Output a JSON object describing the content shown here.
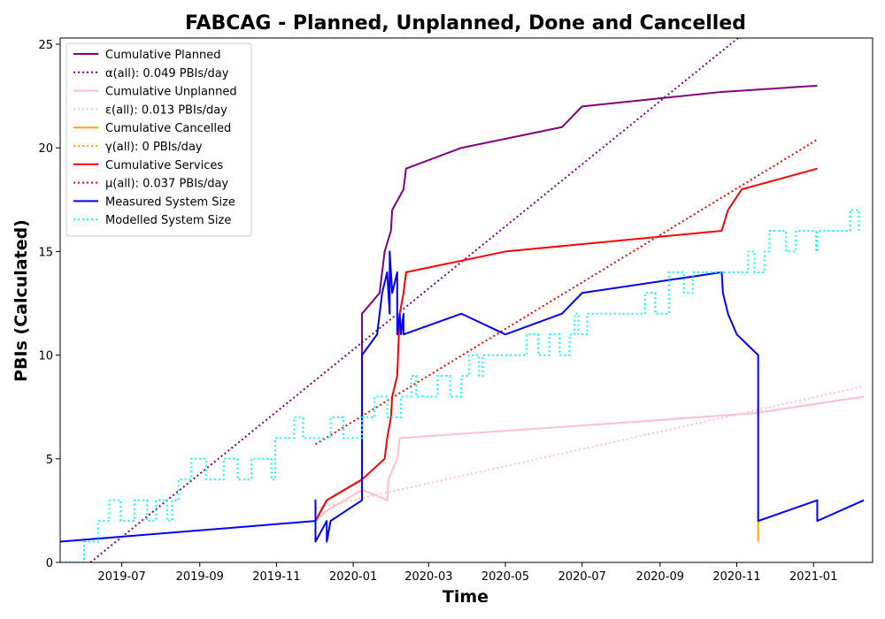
{
  "chart_data": {
    "type": "line",
    "title": "FABCAG - Planned, Unplanned, Done  and Cancelled",
    "xlabel": "Time",
    "ylabel": "PBIs (Calculated)",
    "xlim": [
      "2019-05-13",
      "2021-02-17"
    ],
    "ylim": [
      0,
      25.3
    ],
    "x_ticks": [
      {
        "label": "2019-07",
        "date": "2019-07-01"
      },
      {
        "label": "2019-09",
        "date": "2019-09-01"
      },
      {
        "label": "2019-11",
        "date": "2019-11-01"
      },
      {
        "label": "2020-01",
        "date": "2020-01-01"
      },
      {
        "label": "2020-03",
        "date": "2020-03-01"
      },
      {
        "label": "2020-05",
        "date": "2020-05-01"
      },
      {
        "label": "2020-07",
        "date": "2020-07-01"
      },
      {
        "label": "2020-09",
        "date": "2020-09-01"
      },
      {
        "label": "2020-11",
        "date": "2020-11-01"
      },
      {
        "label": "2021-01",
        "date": "2021-01-01"
      }
    ],
    "y_ticks": [
      0,
      5,
      10,
      15,
      20,
      25
    ],
    "legend_position": "top-left",
    "series": [
      {
        "name": "Cumulative Planned",
        "color": "#800080",
        "style": "solid",
        "points": [
          [
            "2019-12-02",
            2
          ],
          [
            "2019-12-11",
            3
          ],
          [
            "2020-01-08",
            4
          ],
          [
            "2020-01-08",
            12
          ],
          [
            "2020-01-22",
            13
          ],
          [
            "2020-01-26",
            15
          ],
          [
            "2020-01-31",
            16
          ],
          [
            "2020-02-01",
            17
          ],
          [
            "2020-02-10",
            18
          ],
          [
            "2020-02-12",
            19
          ],
          [
            "2020-03-27",
            20
          ],
          [
            "2020-06-15",
            21
          ],
          [
            "2020-07-01",
            22
          ],
          [
            "2020-10-20",
            22.7
          ],
          [
            "2021-01-04",
            23
          ]
        ]
      },
      {
        "name": "α(all): 0.049 PBIs/day",
        "color": "#800080",
        "style": "dotted",
        "points": [
          [
            "2019-06-06",
            0
          ],
          [
            "2020-11-02",
            25.3
          ]
        ]
      },
      {
        "name": "Cumulative Unplanned",
        "color": "#FFC0CB",
        "style": "solid",
        "points": [
          [
            "2019-12-02",
            2
          ],
          [
            "2019-12-11",
            2.5
          ],
          [
            "2020-01-08",
            3.5
          ],
          [
            "2020-01-28",
            3
          ],
          [
            "2020-01-29",
            4
          ],
          [
            "2020-02-05",
            5
          ],
          [
            "2020-02-07",
            6
          ],
          [
            "2020-07-01",
            6.6
          ],
          [
            "2020-11-15",
            7.2
          ],
          [
            "2021-02-10",
            8
          ]
        ]
      },
      {
        "name": "ε(all): 0.013 PBIs/day",
        "color": "#FFC0CB",
        "style": "dotted",
        "points": [
          [
            "2019-12-02",
            2.6
          ],
          [
            "2021-02-10",
            8.5
          ]
        ]
      },
      {
        "name": "Cumulative Cancelled",
        "color": "#FFA500",
        "style": "solid",
        "points": [
          [
            "2020-11-18",
            1
          ],
          [
            "2020-11-18",
            2
          ]
        ]
      },
      {
        "name": "γ(all): 0 PBIs/day",
        "color": "#FFA500",
        "style": "dotted",
        "points": []
      },
      {
        "name": "Cumulative Services",
        "color": "#FF0000",
        "style": "solid",
        "points": [
          [
            "2019-12-02",
            2
          ],
          [
            "2019-12-11",
            3
          ],
          [
            "2020-01-08",
            4
          ],
          [
            "2020-01-26",
            5
          ],
          [
            "2020-01-28",
            6
          ],
          [
            "2020-01-31",
            7
          ],
          [
            "2020-02-01",
            8
          ],
          [
            "2020-02-05",
            9
          ],
          [
            "2020-02-07",
            12
          ],
          [
            "2020-02-10",
            13
          ],
          [
            "2020-02-12",
            14
          ],
          [
            "2020-05-01",
            15
          ],
          [
            "2020-10-20",
            16
          ],
          [
            "2020-10-25",
            17
          ],
          [
            "2020-11-05",
            18
          ],
          [
            "2021-01-04",
            19
          ]
        ]
      },
      {
        "name": "μ(all): 0.037 PBIs/day",
        "color": "#FF0000",
        "style": "dotted",
        "points": [
          [
            "2019-12-02",
            5.7
          ],
          [
            "2021-01-04",
            20.4
          ]
        ]
      },
      {
        "name": "Measured System Size",
        "color": "#0000FF",
        "style": "solid",
        "points": [
          [
            "2019-05-13",
            1
          ],
          [
            "2019-12-02",
            2
          ],
          [
            "2019-12-02",
            3
          ],
          [
            "2019-12-02",
            1
          ],
          [
            "2019-12-11",
            2
          ],
          [
            "2019-12-11",
            1
          ],
          [
            "2019-12-14",
            2
          ],
          [
            "2020-01-08",
            3
          ],
          [
            "2020-01-08",
            10
          ],
          [
            "2020-01-20",
            11
          ],
          [
            "2020-01-24",
            13
          ],
          [
            "2020-01-28",
            14
          ],
          [
            "2020-01-30",
            12
          ],
          [
            "2020-01-30",
            15
          ],
          [
            "2020-02-01",
            13
          ],
          [
            "2020-02-05",
            14
          ],
          [
            "2020-02-05",
            11
          ],
          [
            "2020-02-07",
            12
          ],
          [
            "2020-02-08",
            11
          ],
          [
            "2020-02-10",
            12
          ],
          [
            "2020-02-10",
            11
          ],
          [
            "2020-03-27",
            12
          ],
          [
            "2020-05-01",
            11
          ],
          [
            "2020-06-15",
            12
          ],
          [
            "2020-07-01",
            13
          ],
          [
            "2020-10-20",
            14
          ],
          [
            "2020-10-21",
            13
          ],
          [
            "2020-10-25",
            12
          ],
          [
            "2020-11-01",
            11
          ],
          [
            "2020-11-18",
            10
          ],
          [
            "2020-11-18",
            2
          ],
          [
            "2021-01-04",
            3
          ],
          [
            "2021-01-04",
            2
          ],
          [
            "2021-02-10",
            3
          ]
        ]
      },
      {
        "name": "Modelled System Size",
        "color": "#00FFFF",
        "style": "dotted",
        "points": [
          [
            "2019-05-13",
            0
          ],
          [
            "2019-06-01",
            0
          ],
          [
            "2019-06-01",
            1
          ],
          [
            "2019-06-12",
            1
          ],
          [
            "2019-06-12",
            2
          ],
          [
            "2019-06-21",
            2
          ],
          [
            "2019-06-21",
            3
          ],
          [
            "2019-06-30",
            3
          ],
          [
            "2019-06-30",
            2
          ],
          [
            "2019-07-11",
            2
          ],
          [
            "2019-07-11",
            3
          ],
          [
            "2019-07-21",
            3
          ],
          [
            "2019-07-21",
            2
          ],
          [
            "2019-07-28",
            2
          ],
          [
            "2019-07-28",
            3
          ],
          [
            "2019-08-06",
            3
          ],
          [
            "2019-08-06",
            2
          ],
          [
            "2019-08-10",
            2
          ],
          [
            "2019-08-10",
            3
          ],
          [
            "2019-08-15",
            3
          ],
          [
            "2019-08-15",
            4
          ],
          [
            "2019-08-25",
            4
          ],
          [
            "2019-08-25",
            5
          ],
          [
            "2019-09-06",
            5
          ],
          [
            "2019-09-06",
            4
          ],
          [
            "2019-09-20",
            4
          ],
          [
            "2019-09-20",
            5
          ],
          [
            "2019-10-01",
            5
          ],
          [
            "2019-10-01",
            4
          ],
          [
            "2019-10-12",
            4
          ],
          [
            "2019-10-12",
            5
          ],
          [
            "2019-10-28",
            5
          ],
          [
            "2019-10-28",
            4
          ],
          [
            "2019-10-31",
            4
          ],
          [
            "2019-10-31",
            6
          ],
          [
            "2019-11-15",
            6
          ],
          [
            "2019-11-15",
            7
          ],
          [
            "2019-11-22",
            7
          ],
          [
            "2019-11-22",
            6
          ],
          [
            "2019-12-14",
            6
          ],
          [
            "2019-12-14",
            7
          ],
          [
            "2019-12-24",
            7
          ],
          [
            "2019-12-24",
            6
          ],
          [
            "2020-01-08",
            6
          ],
          [
            "2020-01-08",
            7
          ],
          [
            "2020-01-18",
            7
          ],
          [
            "2020-01-18",
            8
          ],
          [
            "2020-01-28",
            8
          ],
          [
            "2020-01-28",
            7
          ],
          [
            "2020-02-08",
            7
          ],
          [
            "2020-02-08",
            8
          ],
          [
            "2020-02-16",
            8
          ],
          [
            "2020-02-16",
            9
          ],
          [
            "2020-02-20",
            9
          ],
          [
            "2020-02-20",
            8
          ],
          [
            "2020-03-08",
            8
          ],
          [
            "2020-03-08",
            9
          ],
          [
            "2020-03-18",
            9
          ],
          [
            "2020-03-18",
            8
          ],
          [
            "2020-03-27",
            8
          ],
          [
            "2020-03-27",
            9
          ],
          [
            "2020-04-02",
            9
          ],
          [
            "2020-04-02",
            10
          ],
          [
            "2020-04-10",
            10
          ],
          [
            "2020-04-10",
            9
          ],
          [
            "2020-04-13",
            9
          ],
          [
            "2020-04-13",
            10
          ],
          [
            "2020-05-18",
            10
          ],
          [
            "2020-05-18",
            11
          ],
          [
            "2020-05-27",
            11
          ],
          [
            "2020-05-27",
            10
          ],
          [
            "2020-06-05",
            10
          ],
          [
            "2020-06-05",
            11
          ],
          [
            "2020-06-13",
            11
          ],
          [
            "2020-06-13",
            10
          ],
          [
            "2020-06-21",
            10
          ],
          [
            "2020-06-21",
            11
          ],
          [
            "2020-06-25",
            11
          ],
          [
            "2020-06-25",
            12
          ],
          [
            "2020-06-28",
            12
          ],
          [
            "2020-06-28",
            11
          ],
          [
            "2020-07-05",
            11
          ],
          [
            "2020-07-05",
            12
          ],
          [
            "2020-08-20",
            12
          ],
          [
            "2020-08-20",
            13
          ],
          [
            "2020-08-28",
            13
          ],
          [
            "2020-08-28",
            12
          ],
          [
            "2020-09-08",
            12
          ],
          [
            "2020-09-08",
            14
          ],
          [
            "2020-09-20",
            14
          ],
          [
            "2020-09-20",
            13
          ],
          [
            "2020-09-27",
            13
          ],
          [
            "2020-09-27",
            14
          ],
          [
            "2020-11-10",
            14
          ],
          [
            "2020-11-10",
            15
          ],
          [
            "2020-11-15",
            15
          ],
          [
            "2020-11-15",
            14
          ],
          [
            "2020-11-23",
            14
          ],
          [
            "2020-11-23",
            15
          ],
          [
            "2020-11-27",
            15
          ],
          [
            "2020-11-27",
            16
          ],
          [
            "2020-12-10",
            16
          ],
          [
            "2020-12-10",
            15
          ],
          [
            "2020-12-18",
            15
          ],
          [
            "2020-12-18",
            16
          ],
          [
            "2021-01-03",
            16
          ],
          [
            "2021-01-03",
            15
          ],
          [
            "2021-01-04",
            15
          ],
          [
            "2021-01-04",
            16
          ],
          [
            "2021-01-30",
            16
          ],
          [
            "2021-01-30",
            17
          ],
          [
            "2021-02-06",
            17
          ],
          [
            "2021-02-06",
            16
          ]
        ]
      }
    ]
  }
}
